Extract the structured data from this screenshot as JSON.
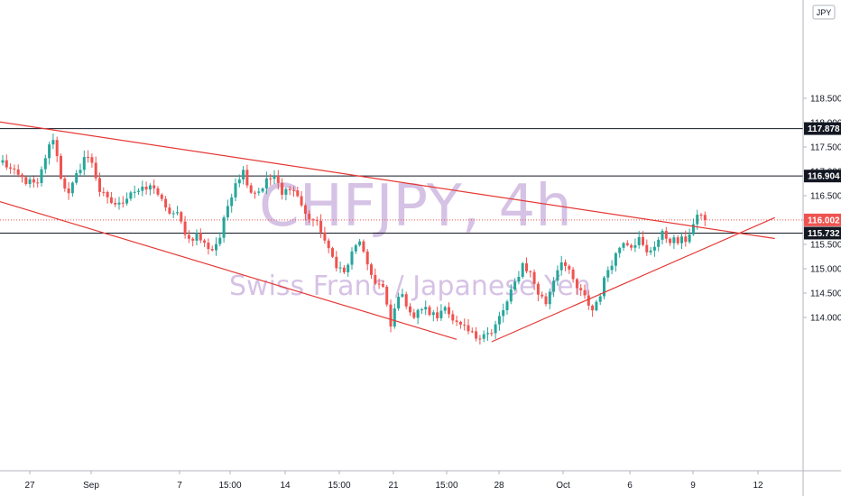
{
  "watermark": {
    "title": "CHFJPY, 4h",
    "subtitle": "Swiss Franc / Japanese Yen"
  },
  "currency_label": "JPY",
  "chart_data": {
    "type": "candlestick",
    "symbol": "CHFJPY",
    "interval": "4h",
    "ylim": [
      113.5,
      119.0
    ],
    "y_ticks": [
      114.0,
      114.5,
      115.0,
      115.5,
      116.0,
      116.5,
      117.0,
      117.5,
      118.0,
      118.5
    ],
    "y_tick_labels": [
      "114.000",
      "114.500",
      "115.000",
      "115.500",
      "116.000",
      "116.500",
      "117.000",
      "117.500",
      "118.000",
      "118.500"
    ],
    "x_ticks": [
      "27",
      "Sep",
      "7",
      "15:00",
      "14",
      "15:00",
      "21",
      "15:00",
      "28",
      "Oct",
      "6",
      "9",
      "12"
    ],
    "colors": {
      "up": "#26a69a",
      "down": "#ef5350",
      "trendline": "#e53935",
      "level": "#131722",
      "tag": "#131722",
      "current_tag": "#ef5350"
    },
    "horizontal_levels": [
      {
        "value": 117.878,
        "label": "117.878"
      },
      {
        "value": 116.904,
        "label": "116.904"
      },
      {
        "value": 115.732,
        "label": "115.732"
      }
    ],
    "current_price": {
      "value": 116.002,
      "label": "116.002"
    },
    "trendlines": [
      {
        "name": "descending-resistance",
        "from": {
          "candle": -12,
          "price": 118.15
        },
        "to": {
          "candle": 199,
          "price": 115.62
        }
      },
      {
        "name": "descending-support",
        "from": {
          "candle": -12,
          "price": 116.65
        },
        "to": {
          "candle": 117,
          "price": 113.55
        }
      },
      {
        "name": "ascending-support",
        "from": {
          "candle": 126,
          "price": 113.5
        },
        "to": {
          "candle": 199,
          "price": 116.05
        }
      }
    ],
    "candle_anchors": [
      [
        0,
        117.2
      ],
      [
        3,
        116.95
      ],
      [
        6,
        116.8
      ],
      [
        9,
        116.7
      ],
      [
        11,
        117.3
      ],
      [
        13,
        117.7
      ],
      [
        15,
        116.9
      ],
      [
        17,
        116.5
      ],
      [
        19,
        116.9
      ],
      [
        21,
        117.3
      ],
      [
        23,
        117.2
      ],
      [
        25,
        116.6
      ],
      [
        27,
        116.4
      ],
      [
        30,
        116.3
      ],
      [
        33,
        116.6
      ],
      [
        36,
        116.6
      ],
      [
        39,
        116.7
      ],
      [
        42,
        116.2
      ],
      [
        45,
        116.1
      ],
      [
        48,
        115.6
      ],
      [
        50,
        115.7
      ],
      [
        52,
        115.5
      ],
      [
        54,
        115.4
      ],
      [
        56,
        115.65
      ],
      [
        58,
        116.3
      ],
      [
        60,
        116.8
      ],
      [
        62,
        117.0
      ],
      [
        64,
        116.6
      ],
      [
        66,
        116.6
      ],
      [
        68,
        116.8
      ],
      [
        70,
        116.9
      ],
      [
        72,
        116.5
      ],
      [
        74,
        116.7
      ],
      [
        76,
        116.5
      ],
      [
        78,
        116.1
      ],
      [
        80,
        116.0
      ],
      [
        82,
        115.8
      ],
      [
        84,
        115.35
      ],
      [
        86,
        115.1
      ],
      [
        88,
        114.9
      ],
      [
        90,
        115.3
      ],
      [
        92,
        115.6
      ],
      [
        94,
        115.0
      ],
      [
        96,
        114.75
      ],
      [
        98,
        114.6
      ],
      [
        100,
        113.8
      ],
      [
        102,
        114.5
      ],
      [
        104,
        114.3
      ],
      [
        106,
        114.0
      ],
      [
        108,
        114.2
      ],
      [
        110,
        114.1
      ],
      [
        112,
        114.0
      ],
      [
        114,
        114.3
      ],
      [
        116,
        113.9
      ],
      [
        118,
        113.8
      ],
      [
        120,
        113.7
      ],
      [
        122,
        113.6
      ],
      [
        124,
        113.7
      ],
      [
        126,
        113.65
      ],
      [
        128,
        114.0
      ],
      [
        130,
        114.3
      ],
      [
        132,
        114.7
      ],
      [
        134,
        115.1
      ],
      [
        136,
        114.9
      ],
      [
        138,
        114.5
      ],
      [
        140,
        114.3
      ],
      [
        142,
        114.8
      ],
      [
        144,
        115.2
      ],
      [
        146,
        114.9
      ],
      [
        148,
        114.6
      ],
      [
        150,
        114.4
      ],
      [
        152,
        114.15
      ],
      [
        154,
        114.5
      ],
      [
        156,
        115.0
      ],
      [
        158,
        115.3
      ],
      [
        160,
        115.6
      ],
      [
        162,
        115.5
      ],
      [
        164,
        115.6
      ],
      [
        166,
        115.3
      ],
      [
        168,
        115.5
      ],
      [
        170,
        115.7
      ],
      [
        172,
        115.6
      ],
      [
        174,
        115.55
      ],
      [
        176,
        115.6
      ],
      [
        178,
        115.9
      ],
      [
        180,
        116.15
      ],
      [
        181,
        116.0
      ]
    ],
    "candle_count": 182
  }
}
